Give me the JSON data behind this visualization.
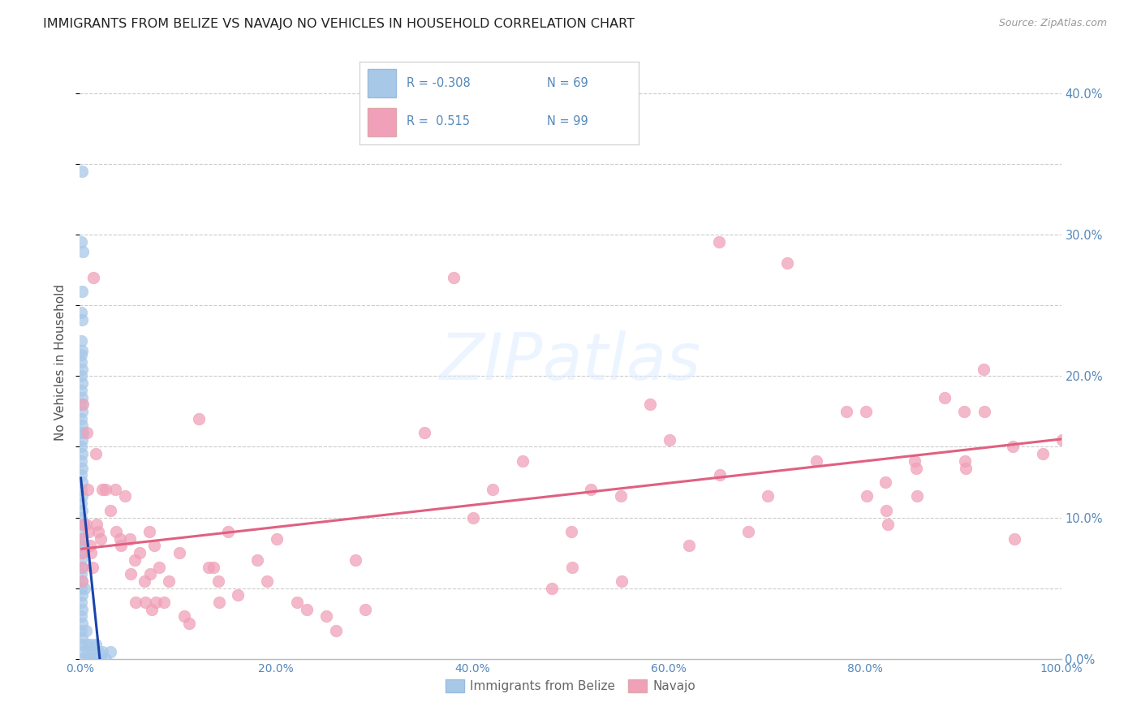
{
  "title": "IMMIGRANTS FROM BELIZE VS NAVAJO NO VEHICLES IN HOUSEHOLD CORRELATION CHART",
  "source": "Source: ZipAtlas.com",
  "ylabel": "No Vehicles in Household",
  "legend_labels": [
    "Immigrants from Belize",
    "Navajo"
  ],
  "legend_R": [
    "-0.308",
    "0.515"
  ],
  "legend_N": [
    "69",
    "99"
  ],
  "blue_color": "#A8C8E8",
  "pink_color": "#F0A0B8",
  "blue_line_color": "#1A44AA",
  "pink_line_color": "#E06080",
  "background_color": "#FFFFFF",
  "grid_color": "#CCCCCC",
  "title_color": "#222222",
  "right_tick_color": "#5588BB",
  "xlim": [
    0.0,
    1.0
  ],
  "ylim": [
    0.0,
    0.42
  ],
  "x_ticks": [
    0.0,
    0.2,
    0.4,
    0.6,
    0.8,
    1.0
  ],
  "y_ticks": [
    0.0,
    0.1,
    0.2,
    0.3,
    0.4
  ],
  "x_tick_labels": [
    "0.0%",
    "20.0%",
    "40.0%",
    "60.0%",
    "80.0%",
    "100.0%"
  ],
  "y_tick_labels_right": [
    "0.0%",
    "10.0%",
    "20.0%",
    "30.0%",
    "40.0%"
  ],
  "belize_points": [
    [
      0.002,
      0.345
    ],
    [
      0.003,
      0.288
    ],
    [
      0.001,
      0.295
    ],
    [
      0.002,
      0.26
    ],
    [
      0.001,
      0.245
    ],
    [
      0.002,
      0.24
    ],
    [
      0.001,
      0.225
    ],
    [
      0.002,
      0.218
    ],
    [
      0.001,
      0.215
    ],
    [
      0.001,
      0.21
    ],
    [
      0.002,
      0.205
    ],
    [
      0.001,
      0.2
    ],
    [
      0.002,
      0.195
    ],
    [
      0.001,
      0.19
    ],
    [
      0.002,
      0.185
    ],
    [
      0.001,
      0.18
    ],
    [
      0.002,
      0.175
    ],
    [
      0.001,
      0.17
    ],
    [
      0.002,
      0.165
    ],
    [
      0.001,
      0.16
    ],
    [
      0.002,
      0.155
    ],
    [
      0.001,
      0.15
    ],
    [
      0.002,
      0.145
    ],
    [
      0.001,
      0.14
    ],
    [
      0.002,
      0.135
    ],
    [
      0.001,
      0.13
    ],
    [
      0.002,
      0.125
    ],
    [
      0.001,
      0.12
    ],
    [
      0.002,
      0.115
    ],
    [
      0.001,
      0.11
    ],
    [
      0.002,
      0.105
    ],
    [
      0.001,
      0.1
    ],
    [
      0.002,
      0.095
    ],
    [
      0.001,
      0.09
    ],
    [
      0.002,
      0.085
    ],
    [
      0.001,
      0.08
    ],
    [
      0.002,
      0.075
    ],
    [
      0.001,
      0.07
    ],
    [
      0.002,
      0.065
    ],
    [
      0.001,
      0.06
    ],
    [
      0.002,
      0.055
    ],
    [
      0.001,
      0.05
    ],
    [
      0.002,
      0.045
    ],
    [
      0.001,
      0.04
    ],
    [
      0.002,
      0.035
    ],
    [
      0.001,
      0.03
    ],
    [
      0.002,
      0.025
    ],
    [
      0.001,
      0.02
    ],
    [
      0.002,
      0.015
    ],
    [
      0.001,
      0.01
    ],
    [
      0.002,
      0.005
    ],
    [
      0.001,
      0.0
    ],
    [
      0.003,
      0.16
    ],
    [
      0.004,
      0.08
    ],
    [
      0.005,
      0.05
    ],
    [
      0.006,
      0.02
    ],
    [
      0.007,
      0.01
    ],
    [
      0.008,
      0.005
    ],
    [
      0.009,
      0.0
    ],
    [
      0.011,
      0.01
    ],
    [
      0.013,
      0.005
    ],
    [
      0.014,
      0.0
    ],
    [
      0.016,
      0.01
    ],
    [
      0.017,
      0.0
    ],
    [
      0.019,
      0.005
    ],
    [
      0.021,
      0.0
    ],
    [
      0.023,
      0.005
    ],
    [
      0.026,
      0.0
    ],
    [
      0.031,
      0.005
    ]
  ],
  "navajo_points": [
    [
      0.002,
      0.085
    ],
    [
      0.002,
      0.075
    ],
    [
      0.002,
      0.065
    ],
    [
      0.002,
      0.055
    ],
    [
      0.003,
      0.18
    ],
    [
      0.004,
      0.095
    ],
    [
      0.006,
      0.095
    ],
    [
      0.007,
      0.16
    ],
    [
      0.008,
      0.12
    ],
    [
      0.009,
      0.09
    ],
    [
      0.01,
      0.08
    ],
    [
      0.011,
      0.075
    ],
    [
      0.013,
      0.065
    ],
    [
      0.014,
      0.27
    ],
    [
      0.016,
      0.145
    ],
    [
      0.017,
      0.095
    ],
    [
      0.019,
      0.09
    ],
    [
      0.021,
      0.085
    ],
    [
      0.023,
      0.12
    ],
    [
      0.026,
      0.12
    ],
    [
      0.031,
      0.105
    ],
    [
      0.036,
      0.12
    ],
    [
      0.037,
      0.09
    ],
    [
      0.041,
      0.085
    ],
    [
      0.042,
      0.08
    ],
    [
      0.046,
      0.115
    ],
    [
      0.051,
      0.085
    ],
    [
      0.052,
      0.06
    ],
    [
      0.056,
      0.07
    ],
    [
      0.057,
      0.04
    ],
    [
      0.061,
      0.075
    ],
    [
      0.066,
      0.055
    ],
    [
      0.067,
      0.04
    ],
    [
      0.071,
      0.09
    ],
    [
      0.072,
      0.06
    ],
    [
      0.073,
      0.035
    ],
    [
      0.076,
      0.08
    ],
    [
      0.077,
      0.04
    ],
    [
      0.081,
      0.065
    ],
    [
      0.086,
      0.04
    ],
    [
      0.091,
      0.055
    ],
    [
      0.101,
      0.075
    ],
    [
      0.106,
      0.03
    ],
    [
      0.111,
      0.025
    ],
    [
      0.121,
      0.17
    ],
    [
      0.131,
      0.065
    ],
    [
      0.136,
      0.065
    ],
    [
      0.141,
      0.055
    ],
    [
      0.142,
      0.04
    ],
    [
      0.151,
      0.09
    ],
    [
      0.161,
      0.045
    ],
    [
      0.181,
      0.07
    ],
    [
      0.191,
      0.055
    ],
    [
      0.201,
      0.085
    ],
    [
      0.221,
      0.04
    ],
    [
      0.231,
      0.035
    ],
    [
      0.251,
      0.03
    ],
    [
      0.261,
      0.02
    ],
    [
      0.281,
      0.07
    ],
    [
      0.291,
      0.035
    ],
    [
      0.351,
      0.16
    ],
    [
      0.381,
      0.27
    ],
    [
      0.401,
      0.1
    ],
    [
      0.421,
      0.12
    ],
    [
      0.451,
      0.14
    ],
    [
      0.481,
      0.05
    ],
    [
      0.501,
      0.09
    ],
    [
      0.502,
      0.065
    ],
    [
      0.521,
      0.12
    ],
    [
      0.551,
      0.115
    ],
    [
      0.552,
      0.055
    ],
    [
      0.581,
      0.18
    ],
    [
      0.601,
      0.155
    ],
    [
      0.621,
      0.08
    ],
    [
      0.651,
      0.295
    ],
    [
      0.652,
      0.13
    ],
    [
      0.681,
      0.09
    ],
    [
      0.701,
      0.115
    ],
    [
      0.721,
      0.28
    ],
    [
      0.751,
      0.14
    ],
    [
      0.781,
      0.175
    ],
    [
      0.801,
      0.175
    ],
    [
      0.802,
      0.115
    ],
    [
      0.821,
      0.125
    ],
    [
      0.822,
      0.105
    ],
    [
      0.823,
      0.095
    ],
    [
      0.851,
      0.14
    ],
    [
      0.852,
      0.135
    ],
    [
      0.853,
      0.115
    ],
    [
      0.881,
      0.185
    ],
    [
      0.901,
      0.175
    ],
    [
      0.902,
      0.14
    ],
    [
      0.903,
      0.135
    ],
    [
      0.921,
      0.205
    ],
    [
      0.922,
      0.175
    ],
    [
      0.951,
      0.15
    ],
    [
      0.952,
      0.085
    ],
    [
      0.981,
      0.145
    ],
    [
      1.001,
      0.155
    ]
  ]
}
